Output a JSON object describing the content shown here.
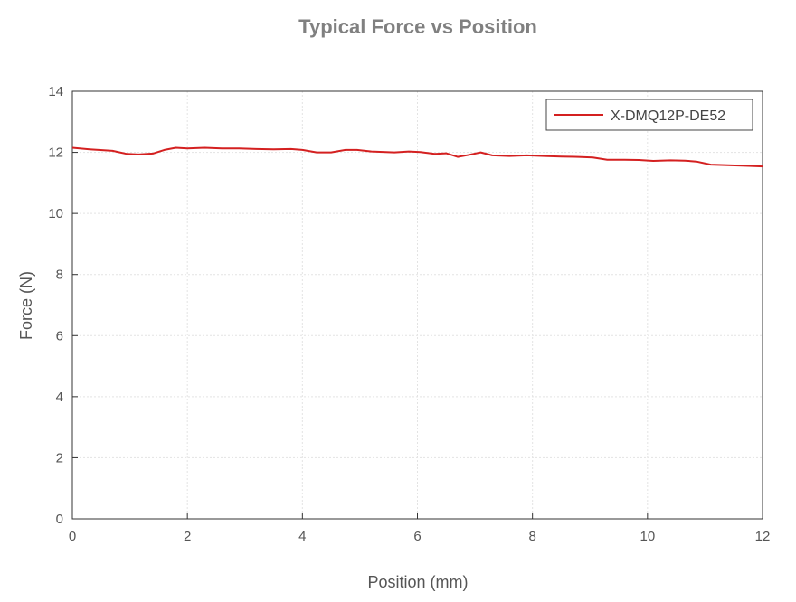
{
  "chart_data": {
    "type": "line",
    "title": "Typical Force vs Position",
    "xlabel": "Position (mm)",
    "ylabel": "Force (N)",
    "xlim": [
      0,
      12
    ],
    "ylim": [
      0,
      14
    ],
    "xticks": [
      0,
      2,
      4,
      6,
      8,
      10,
      12
    ],
    "yticks": [
      0,
      2,
      4,
      6,
      8,
      10,
      12,
      14
    ],
    "grid": true,
    "legend_position": "top-right",
    "series": [
      {
        "name": "X-DMQ12P-DE52",
        "color": "#d42020",
        "x": [
          0,
          0.3,
          0.7,
          0.95,
          1.15,
          1.4,
          1.6,
          1.8,
          2.0,
          2.3,
          2.6,
          2.9,
          3.2,
          3.5,
          3.8,
          4.0,
          4.25,
          4.5,
          4.75,
          4.95,
          5.2,
          5.6,
          5.85,
          6.05,
          6.3,
          6.5,
          6.7,
          6.9,
          7.1,
          7.3,
          7.6,
          7.9,
          8.2,
          8.5,
          8.8,
          9.05,
          9.3,
          9.6,
          9.85,
          10.1,
          10.4,
          10.65,
          10.85,
          11.1,
          11.4,
          11.7,
          12.0
        ],
        "values": [
          12.15,
          12.1,
          12.05,
          11.95,
          11.93,
          11.96,
          12.08,
          12.15,
          12.13,
          12.15,
          12.13,
          12.13,
          12.11,
          12.1,
          12.11,
          12.08,
          12.0,
          12.0,
          12.08,
          12.08,
          12.03,
          12.0,
          12.03,
          12.01,
          11.95,
          11.97,
          11.85,
          11.92,
          12.0,
          11.9,
          11.88,
          11.9,
          11.88,
          11.86,
          11.85,
          11.83,
          11.76,
          11.76,
          11.75,
          11.72,
          11.74,
          11.73,
          11.7,
          11.6,
          11.58,
          11.56,
          11.54
        ]
      }
    ]
  }
}
